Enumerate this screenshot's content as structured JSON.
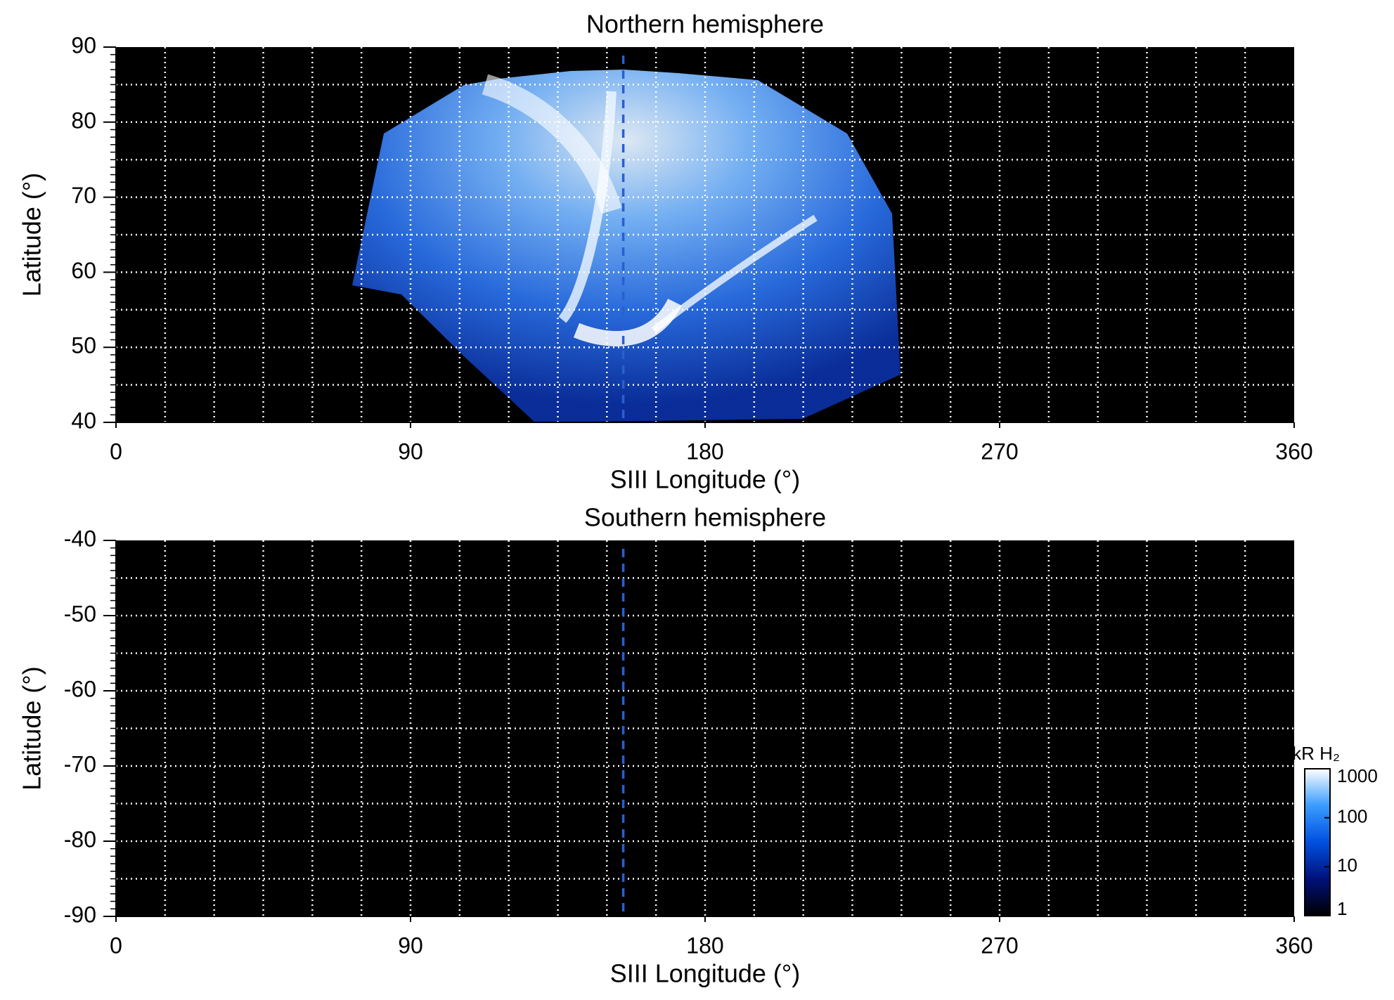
{
  "chart_data": [
    {
      "type": "image",
      "title": "Northern hemisphere",
      "x_label": "SIII Longitude (°)",
      "y_label": "Latitude (°)",
      "xlim": [
        0,
        360
      ],
      "xticks": [
        0,
        90,
        180,
        270,
        360
      ],
      "ylim": [
        40,
        90
      ],
      "yticks": [
        40,
        50,
        60,
        70,
        80,
        90
      ],
      "vline": 155,
      "vline_color": "#2a5fd0",
      "grid": true,
      "background": "#000000"
    },
    {
      "type": "image",
      "title": "Southern hemisphere",
      "x_label": "SIII Longitude (°)",
      "y_label": "Latitude (°)",
      "xlim": [
        0,
        360
      ],
      "xticks": [
        0,
        90,
        180,
        270,
        360
      ],
      "ylim": [
        -90,
        -40
      ],
      "yticks": [
        -90,
        -80,
        -70,
        -60,
        -50,
        -40
      ],
      "vline": 155,
      "vline_color": "#2a5fd0",
      "grid": true,
      "background": "#000000"
    },
    {
      "type": "colorbar",
      "label": "kR H₂",
      "lim": [
        1,
        1000
      ],
      "ticks": [
        1,
        10,
        100,
        1000
      ],
      "log": true,
      "colors": [
        "#000000",
        "#00107a",
        "#0050e0",
        "#3a9cff",
        "#ffffff"
      ]
    }
  ]
}
